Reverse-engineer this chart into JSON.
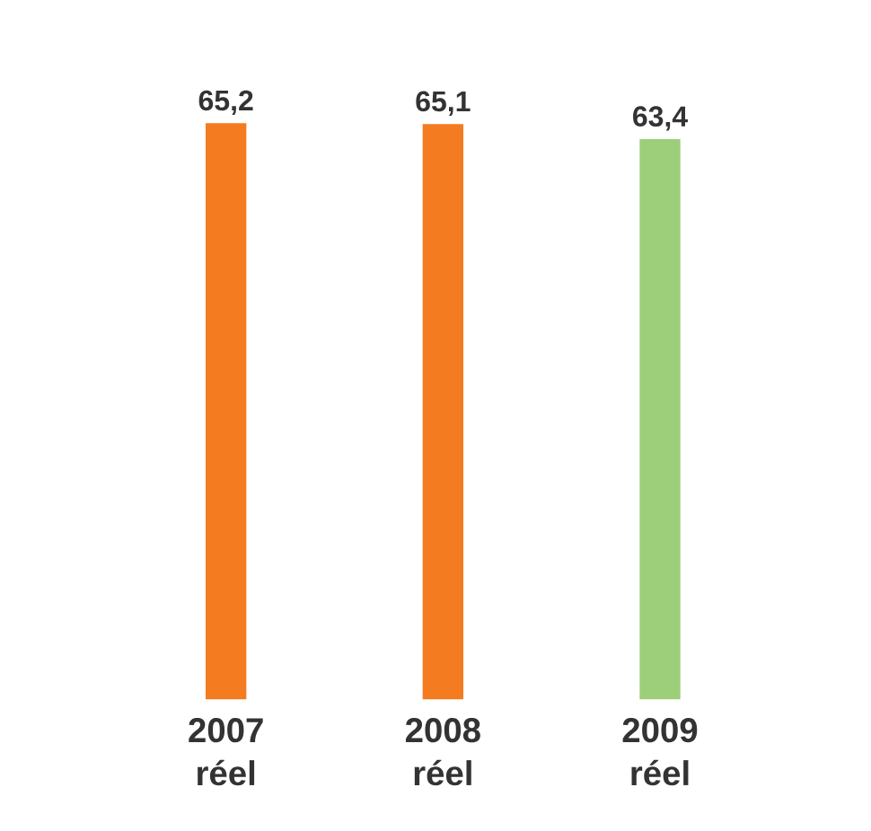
{
  "chart_data": {
    "type": "bar",
    "categories": [
      "2007 réel",
      "2008 réel",
      "2009 réel"
    ],
    "values": [
      65.2,
      65.1,
      63.4
    ],
    "colors": [
      "#f47b20",
      "#f47b20",
      "#9dcf7a"
    ],
    "value_labels": [
      "65,2",
      "65,1",
      "63,4"
    ]
  }
}
